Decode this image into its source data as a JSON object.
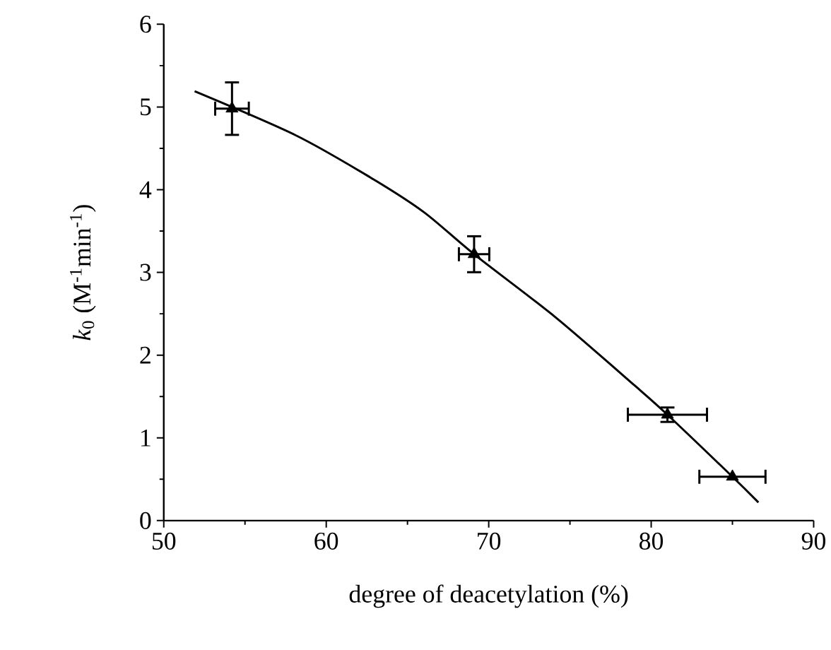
{
  "chart_data": {
    "type": "scatter",
    "xlabel": "degree of deacetylation (%)",
    "ylabel": "*k*$_{0}$ (M$^{-1}$min$^{-1}$)",
    "xlim": [
      50,
      90
    ],
    "ylim": [
      0,
      6
    ],
    "xticks": [
      50,
      60,
      70,
      80,
      90
    ],
    "yticks": [
      0,
      1,
      2,
      3,
      4,
      5,
      6
    ],
    "grid": false,
    "series": [
      {
        "color": "#000000",
        "marker": "triangle",
        "x": [
          54.2,
          69.1,
          81.0,
          85.0
        ],
        "values": [
          4.98,
          3.22,
          1.28,
          0.53
        ],
        "errors": [
          0.33,
          0.23,
          0.1,
          null
        ],
        "xerrors": [
          1.1,
          1.0,
          2.5,
          2.1
        ]
      },
      {
        "type": "line",
        "color": "#000000",
        "marker": "none",
        "line_style": "solid",
        "x": [
          51.9,
          58.1,
          62.7,
          66.0,
          69.1,
          74.1,
          79.0,
          81.0,
          85.0,
          86.6
        ],
        "values": [
          5.19,
          4.66,
          4.15,
          3.73,
          3.22,
          2.46,
          1.63,
          1.28,
          0.53,
          0.22
        ]
      }
    ]
  }
}
